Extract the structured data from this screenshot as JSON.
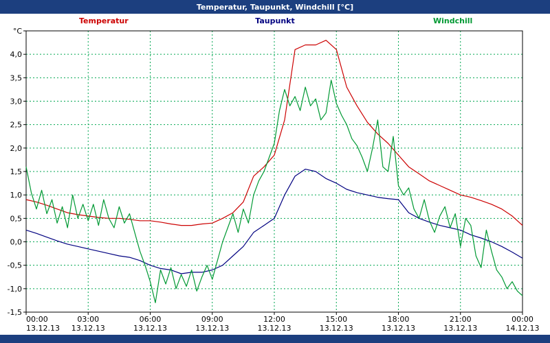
{
  "window": {
    "title": "Temperatur, Taupunkt, Windchill [°C]"
  },
  "colors": {
    "titlebar": "#1c3f7f",
    "footerbar": "#1c3f7f",
    "plot_border": "#000000",
    "grid": "#00a651",
    "temperatur": "#cc0000",
    "taupunkt": "#000080",
    "windchill": "#009933"
  },
  "legend": [
    {
      "label": "Temperatur",
      "color": "#cc0000"
    },
    {
      "label": "Taupunkt",
      "color": "#000080"
    },
    {
      "label": "Windchill",
      "color": "#009933"
    }
  ],
  "chart_data": {
    "type": "line",
    "title": "Temperatur, Taupunkt, Windchill [°C]",
    "ylabel": "°C",
    "ylim": [
      -1.5,
      4.5
    ],
    "y_tick_step": 0.5,
    "x_range_hours": [
      0,
      24
    ],
    "x_tick_every_hours": 3,
    "grid_on": true,
    "grid_dash": "2,3",
    "x_ticks": [
      {
        "time": "00:00",
        "date": "13.12.13"
      },
      {
        "time": "03:00",
        "date": "13.12.13"
      },
      {
        "time": "06:00",
        "date": "13.12.13"
      },
      {
        "time": "09:00",
        "date": "13.12.13"
      },
      {
        "time": "12:00",
        "date": "13.12.13"
      },
      {
        "time": "15:00",
        "date": "13.12.13"
      },
      {
        "time": "18:00",
        "date": "13.12.13"
      },
      {
        "time": "21:00",
        "date": "13.12.13"
      },
      {
        "time": "00:00",
        "date": "14.12.13"
      }
    ],
    "series": [
      {
        "name": "Temperatur",
        "color": "#cc0000",
        "step_h": 0.5,
        "values": [
          0.9,
          0.85,
          0.78,
          0.7,
          0.62,
          0.58,
          0.55,
          0.52,
          0.5,
          0.5,
          0.48,
          0.45,
          0.45,
          0.42,
          0.38,
          0.35,
          0.35,
          0.38,
          0.4,
          0.5,
          0.62,
          0.85,
          1.4,
          1.6,
          1.85,
          2.6,
          4.1,
          4.2,
          4.2,
          4.3,
          4.1,
          3.3,
          2.9,
          2.55,
          2.3,
          2.1,
          1.85,
          1.6,
          1.45,
          1.3,
          1.2,
          1.1,
          1.0,
          0.95,
          0.88,
          0.8,
          0.7,
          0.55,
          0.35
        ]
      },
      {
        "name": "Taupunkt",
        "color": "#000080",
        "step_h": 0.5,
        "values": [
          0.25,
          0.18,
          0.1,
          0.02,
          -0.05,
          -0.1,
          -0.15,
          -0.2,
          -0.25,
          -0.3,
          -0.33,
          -0.4,
          -0.5,
          -0.57,
          -0.6,
          -0.68,
          -0.65,
          -0.65,
          -0.6,
          -0.5,
          -0.3,
          -0.1,
          0.2,
          0.35,
          0.5,
          1.0,
          1.4,
          1.55,
          1.5,
          1.35,
          1.25,
          1.12,
          1.05,
          1.0,
          0.95,
          0.92,
          0.9,
          0.62,
          0.5,
          0.42,
          0.35,
          0.3,
          0.25,
          0.15,
          0.08,
          0.0,
          -0.1,
          -0.22,
          -0.35
        ]
      },
      {
        "name": "Windchill",
        "color": "#009933",
        "step_h": 0.25,
        "values": [
          1.6,
          1.05,
          0.7,
          1.1,
          0.6,
          0.9,
          0.4,
          0.75,
          0.3,
          1.0,
          0.5,
          0.8,
          0.45,
          0.8,
          0.35,
          0.9,
          0.5,
          0.3,
          0.75,
          0.4,
          0.6,
          0.2,
          -0.2,
          -0.5,
          -0.85,
          -1.3,
          -0.6,
          -0.9,
          -0.55,
          -1.0,
          -0.7,
          -0.95,
          -0.6,
          -1.05,
          -0.75,
          -0.5,
          -0.8,
          -0.4,
          0.0,
          0.3,
          0.6,
          0.2,
          0.7,
          0.4,
          1.0,
          1.3,
          1.5,
          1.8,
          2.1,
          2.8,
          3.25,
          2.9,
          3.1,
          2.8,
          3.3,
          2.9,
          3.05,
          2.6,
          2.75,
          3.45,
          2.95,
          2.7,
          2.5,
          2.2,
          2.05,
          1.8,
          1.5,
          2.0,
          2.6,
          1.6,
          1.5,
          2.25,
          1.2,
          1.0,
          1.15,
          0.7,
          0.5,
          0.9,
          0.45,
          0.2,
          0.55,
          0.75,
          0.3,
          0.6,
          -0.1,
          0.5,
          0.35,
          -0.3,
          -0.55,
          0.25,
          -0.2,
          -0.6,
          -0.75,
          -1.0,
          -0.85,
          -1.05,
          -1.15
        ]
      }
    ]
  }
}
